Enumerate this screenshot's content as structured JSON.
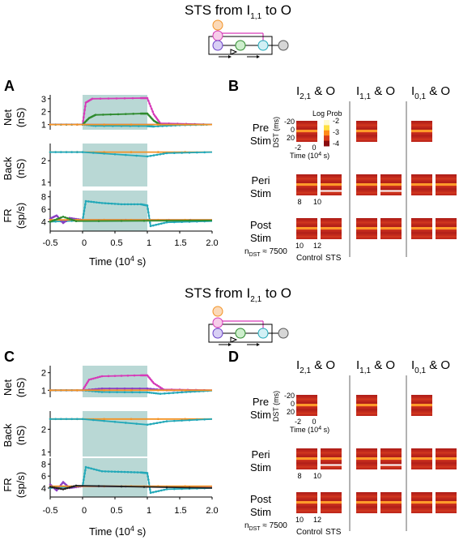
{
  "top": {
    "title": "STS from I",
    "title_sub": "1,1",
    "title_tail": " to O",
    "panel_a": "A",
    "panel_b": "B"
  },
  "bottom": {
    "title": "STS from I",
    "title_sub": "2,1",
    "title_tail": " to O",
    "panel_a": "C",
    "panel_b": "D"
  },
  "axes": {
    "net_label": "Net",
    "net_unit": "(nS)",
    "back_label": "Back",
    "back_unit": "(nS)",
    "fr_label": "FR",
    "fr_unit": "(sp/s)",
    "xlabel": "Time (10",
    "xlabel_exp": "4",
    "xlabel_tail": " s)",
    "xticks": [
      "-0.5",
      "0",
      "0.5",
      "1",
      "1.5",
      "2.0"
    ],
    "net_ticks_top": [
      "1",
      "2",
      "3"
    ],
    "net_ticks_bottom": [
      "1",
      "2"
    ],
    "back_ticks": [
      "1",
      "2"
    ],
    "fr_ticks": [
      "4",
      "6",
      "8"
    ]
  },
  "heatmap": {
    "col1": "I",
    "col1_sub": "2,1",
    "col2": "I",
    "col2_sub": "1,1",
    "col3": "I",
    "col3_sub": "0,1",
    "col_tail": " & O",
    "rows": [
      {
        "l1": "Pre",
        "l2": "Stim"
      },
      {
        "l1": "Peri",
        "l2": "Stim"
      },
      {
        "l1": "Post",
        "l2": "Stim"
      }
    ],
    "colorbar_title": "Log Prob",
    "colorbar_ticks": [
      "-2",
      "-3",
      "-4"
    ],
    "dst_label": "DST (ms)",
    "dst_ticks": [
      "-20",
      "0",
      "20"
    ],
    "time_ticks": [
      "-2",
      "0"
    ],
    "time_label": "Time (10",
    "time_exp": "4",
    "time_tail": " s)",
    "peri_ticks": [
      "8",
      "10"
    ],
    "post_ticks": [
      "10",
      "12"
    ],
    "n_label": "n",
    "n_sub": "DST",
    "n_value": "≈ 7500",
    "control_label": "Control",
    "sts_label": "STS"
  },
  "colors": {
    "magenta": "#d63ab8",
    "green": "#2e8b2e",
    "cyan": "#22a8b8",
    "purple": "#8a3fc4",
    "orange": "#f39325",
    "blue": "#3050c8",
    "black": "#222222",
    "stim_shade": "#b9d8d5"
  },
  "chart_data": [
    {
      "type": "line",
      "title": "STS from I1,1 to O",
      "panel": "A-Net",
      "xlabel": "Time (10^4 s)",
      "ylabel": "Net (nS)",
      "xlim": [
        -0.5,
        2.0
      ],
      "ylim": [
        0.6,
        3.3
      ],
      "stim_window": [
        0,
        1
      ],
      "series": [
        {
          "color": "magenta",
          "x": [
            -0.5,
            0,
            0.05,
            0.15,
            0.9,
            1.0,
            1.1,
            1.2,
            2.0
          ],
          "y": [
            1.0,
            1.0,
            2.7,
            3.0,
            3.05,
            3.05,
            1.8,
            1.1,
            1.0
          ]
        },
        {
          "color": "green",
          "x": [
            -0.5,
            0,
            0.1,
            0.2,
            0.9,
            1.0,
            1.1,
            1.2,
            2.0
          ],
          "y": [
            1.0,
            1.0,
            1.5,
            1.75,
            1.85,
            1.85,
            1.3,
            1.0,
            1.0
          ]
        },
        {
          "color": "cyan",
          "x": [
            -0.5,
            0,
            0.2,
            1.0,
            1.1,
            1.5,
            2.0
          ],
          "y": [
            1.0,
            1.0,
            0.9,
            0.88,
            0.85,
            0.95,
            1.0
          ]
        },
        {
          "color": "purple",
          "x": [
            -0.5,
            2.0
          ],
          "y": [
            1.0,
            1.0
          ]
        },
        {
          "color": "orange",
          "x": [
            -0.5,
            2.0
          ],
          "y": [
            1.0,
            1.0
          ]
        }
      ]
    },
    {
      "type": "line",
      "panel": "A-Back",
      "ylabel": "Back (nS)",
      "xlim": [
        -0.5,
        2.0
      ],
      "ylim": [
        0.8,
        2.8
      ],
      "stim_window": [
        0,
        1
      ],
      "series": [
        {
          "color": "orange",
          "x": [
            -0.5,
            2.0
          ],
          "y": [
            2.4,
            2.4
          ]
        },
        {
          "color": "cyan",
          "x": [
            -0.5,
            0,
            1.0,
            1.3,
            2.0
          ],
          "y": [
            2.4,
            2.4,
            2.2,
            2.35,
            2.4
          ]
        }
      ]
    },
    {
      "type": "line",
      "panel": "A-FR",
      "ylabel": "FR (sp/s)",
      "xlim": [
        -0.5,
        2.0
      ],
      "ylim": [
        2.5,
        9.0
      ],
      "stim_window": [
        0,
        1
      ],
      "series": [
        {
          "color": "cyan",
          "x": [
            -0.5,
            0,
            0.05,
            0.3,
            0.6,
            0.9,
            1.0,
            1.05,
            1.3,
            2.0
          ],
          "y": [
            4.0,
            4.2,
            7.3,
            7.0,
            6.8,
            6.8,
            6.6,
            3.3,
            3.9,
            4.1
          ]
        },
        {
          "color": "purple",
          "x": [
            -0.5,
            -0.4,
            -0.3,
            -0.2,
            0.0,
            2.0
          ],
          "y": [
            4.5,
            5.0,
            3.8,
            4.6,
            4.3,
            4.3
          ]
        },
        {
          "color": "orange",
          "x": [
            -0.5,
            2.0
          ],
          "y": [
            4.3,
            4.3
          ]
        },
        {
          "color": "green",
          "x": [
            -0.5,
            -0.3,
            -0.1,
            2.0
          ],
          "y": [
            4.0,
            4.8,
            4.1,
            4.2
          ]
        }
      ]
    },
    {
      "type": "line",
      "title": "STS from I2,1 to O",
      "panel": "C-Net",
      "xlabel": "Time (10^4 s)",
      "ylabel": "Net (nS)",
      "xlim": [
        -0.5,
        2.0
      ],
      "ylim": [
        0.6,
        2.4
      ],
      "stim_window": [
        0,
        1
      ],
      "series": [
        {
          "color": "magenta",
          "x": [
            -0.5,
            0,
            0.1,
            0.3,
            0.9,
            1.0,
            1.1,
            1.25,
            2.0
          ],
          "y": [
            1.0,
            1.0,
            1.6,
            1.8,
            1.85,
            1.85,
            1.4,
            1.05,
            1.0
          ]
        },
        {
          "color": "purple",
          "x": [
            -0.5,
            0,
            0.3,
            1.0,
            1.3,
            2.0
          ],
          "y": [
            1.0,
            1.0,
            1.1,
            1.1,
            1.0,
            1.0
          ]
        },
        {
          "color": "cyan",
          "x": [
            -0.5,
            0,
            0.3,
            1.0,
            1.2,
            1.6,
            2.0
          ],
          "y": [
            1.0,
            1.0,
            0.9,
            0.88,
            0.8,
            0.9,
            0.98
          ]
        },
        {
          "color": "orange",
          "x": [
            -0.5,
            2.0
          ],
          "y": [
            1.0,
            1.0
          ]
        }
      ]
    },
    {
      "type": "line",
      "panel": "C-Back",
      "ylabel": "Back (nS)",
      "xlim": [
        -0.5,
        2.0
      ],
      "ylim": [
        0.8,
        2.8
      ],
      "stim_window": [
        0,
        1
      ],
      "series": [
        {
          "color": "orange",
          "x": [
            -0.5,
            2.0
          ],
          "y": [
            2.45,
            2.45
          ]
        },
        {
          "color": "cyan",
          "x": [
            -0.5,
            0,
            1.0,
            1.3,
            2.0
          ],
          "y": [
            2.45,
            2.45,
            2.2,
            2.35,
            2.45
          ]
        }
      ]
    },
    {
      "type": "line",
      "panel": "C-FR",
      "ylabel": "FR (sp/s)",
      "xlim": [
        -0.5,
        2.0
      ],
      "ylim": [
        2.5,
        9.0
      ],
      "stim_window": [
        0,
        1
      ],
      "series": [
        {
          "color": "cyan",
          "x": [
            -0.5,
            0,
            0.05,
            0.3,
            0.6,
            0.9,
            1.0,
            1.05,
            1.3,
            2.0
          ],
          "y": [
            4.0,
            4.3,
            7.5,
            6.8,
            6.7,
            6.6,
            6.5,
            3.2,
            3.8,
            4.0
          ]
        },
        {
          "color": "purple",
          "x": [
            -0.5,
            -0.4,
            -0.3,
            -0.2,
            0.0,
            2.0
          ],
          "y": [
            4.6,
            3.6,
            5.0,
            4.0,
            4.3,
            4.2
          ]
        },
        {
          "color": "orange",
          "x": [
            -0.5,
            2.0
          ],
          "y": [
            4.3,
            4.3
          ]
        },
        {
          "color": "black",
          "x": [
            -0.5,
            -0.3,
            -0.1,
            2.0
          ],
          "y": [
            4.2,
            3.8,
            4.4,
            4.0
          ]
        }
      ]
    }
  ]
}
